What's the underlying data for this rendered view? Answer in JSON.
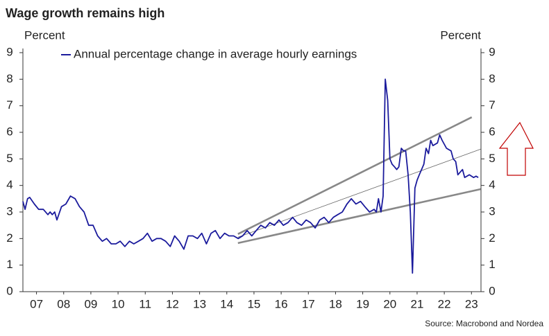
{
  "chart_data": {
    "type": "line",
    "title": "Wage growth remains high",
    "ylabel": "Percent",
    "y2label": "Percent",
    "source": "Source: Macrobond and Nordea",
    "legend": "upper left",
    "x": [
      2007.0,
      2007.08,
      2007.17,
      2007.25,
      2007.42,
      2007.58,
      2007.75,
      2007.92,
      2008.0,
      2008.08,
      2008.17,
      2008.25,
      2008.42,
      2008.58,
      2008.75,
      2008.92,
      2009.08,
      2009.25,
      2009.42,
      2009.58,
      2009.75,
      2009.92,
      2010.08,
      2010.25,
      2010.42,
      2010.58,
      2010.75,
      2010.92,
      2011.08,
      2011.25,
      2011.42,
      2011.58,
      2011.75,
      2011.92,
      2012.08,
      2012.25,
      2012.42,
      2012.58,
      2012.75,
      2012.92,
      2013.08,
      2013.25,
      2013.42,
      2013.58,
      2013.75,
      2013.92,
      2014.08,
      2014.25,
      2014.42,
      2014.58,
      2014.75,
      2014.92,
      2015.08,
      2015.25,
      2015.42,
      2015.58,
      2015.75,
      2015.92,
      2016.08,
      2016.25,
      2016.42,
      2016.58,
      2016.75,
      2016.92,
      2017.08,
      2017.25,
      2017.42,
      2017.58,
      2017.75,
      2017.92,
      2018.08,
      2018.25,
      2018.42,
      2018.58,
      2018.75,
      2018.92,
      2019.08,
      2019.25,
      2019.42,
      2019.58,
      2019.75,
      2019.92,
      2020.0,
      2020.08,
      2020.17,
      2020.25,
      2020.33,
      2020.42,
      2020.5,
      2020.58,
      2020.67,
      2020.75,
      2020.83,
      2020.92,
      2021.0,
      2021.08,
      2021.17,
      2021.25,
      2021.33,
      2021.42,
      2021.5,
      2021.58,
      2021.75,
      2021.83,
      2021.92,
      2022.0,
      2022.08,
      2022.25,
      2022.33,
      2022.42,
      2022.58,
      2022.75,
      2022.83,
      2022.92,
      2023.0,
      2023.17,
      2023.25,
      2023.42,
      2023.58,
      2023.67,
      2023.75
    ],
    "series": [
      {
        "name": "Annual percentage change in average hourly earnings",
        "color": "#1a1a9c",
        "values": [
          3.4,
          3.1,
          3.5,
          3.55,
          3.3,
          3.1,
          3.1,
          2.9,
          3.0,
          2.9,
          3.0,
          2.7,
          3.2,
          3.3,
          3.6,
          3.5,
          3.2,
          3.0,
          2.5,
          2.5,
          2.1,
          1.9,
          2.0,
          1.8,
          1.8,
          1.9,
          1.7,
          1.9,
          1.8,
          1.9,
          2.0,
          2.2,
          1.9,
          2.0,
          2.0,
          1.9,
          1.7,
          2.1,
          1.9,
          1.6,
          2.1,
          2.1,
          2.0,
          2.2,
          1.8,
          2.2,
          2.3,
          2.0,
          2.2,
          2.1,
          2.1,
          2.0,
          2.1,
          2.3,
          2.1,
          2.3,
          2.5,
          2.4,
          2.6,
          2.5,
          2.7,
          2.5,
          2.6,
          2.8,
          2.6,
          2.5,
          2.7,
          2.6,
          2.4,
          2.7,
          2.8,
          2.6,
          2.8,
          2.9,
          3.0,
          3.3,
          3.5,
          3.3,
          3.4,
          3.2,
          3.0,
          3.1,
          3.0,
          3.5,
          3.0,
          3.6,
          8.0,
          7.2,
          5.0,
          4.8,
          4.7,
          4.6,
          4.7,
          5.4,
          5.3,
          5.3,
          4.4,
          3.0,
          0.7,
          3.9,
          4.2,
          4.4,
          4.8,
          5.4,
          5.2,
          5.7,
          5.5,
          5.6,
          5.9,
          5.7,
          5.4,
          5.3,
          5.0,
          4.9,
          4.4,
          4.6,
          4.3,
          4.4,
          4.3,
          4.35,
          4.3
        ]
      }
    ],
    "trend_lines": [
      {
        "color": "#888888",
        "x": [
          2014.91,
          2023.51
        ],
        "values": [
          2.17,
          6.57
        ]
      },
      {
        "color": "#888888",
        "x": [
          2014.91,
          2023.84
        ],
        "values": [
          1.83,
          3.86
        ]
      },
      {
        "color": "#666666",
        "x": [
          2014.91,
          2023.84
        ],
        "values": [
          2.05,
          5.37
        ]
      }
    ],
    "xlim": [
      2007.0,
      2023.85
    ],
    "xticks": [
      {
        "value": 2007.5,
        "label": "07"
      },
      {
        "value": 2008.5,
        "label": "08"
      },
      {
        "value": 2009.5,
        "label": "09"
      },
      {
        "value": 2010.5,
        "label": "10"
      },
      {
        "value": 2011.5,
        "label": "11"
      },
      {
        "value": 2012.5,
        "label": "12"
      },
      {
        "value": 2013.5,
        "label": "13"
      },
      {
        "value": 2014.5,
        "label": "14"
      },
      {
        "value": 2015.5,
        "label": "15"
      },
      {
        "value": 2016.5,
        "label": "16"
      },
      {
        "value": 2017.5,
        "label": "17"
      },
      {
        "value": 2018.5,
        "label": "18"
      },
      {
        "value": 2019.5,
        "label": "19"
      },
      {
        "value": 2020.5,
        "label": "20"
      },
      {
        "value": 2021.5,
        "label": "21"
      },
      {
        "value": 2022.5,
        "label": "22"
      },
      {
        "value": 2023.5,
        "label": "23"
      }
    ],
    "ylim": [
      0,
      9
    ],
    "yticks": [
      0,
      1,
      2,
      3,
      4,
      5,
      6,
      7,
      8,
      9
    ],
    "y2lim": [
      0,
      9
    ],
    "y2ticks": [
      0,
      1,
      2,
      3,
      4,
      5,
      6,
      7,
      8,
      9
    ]
  }
}
